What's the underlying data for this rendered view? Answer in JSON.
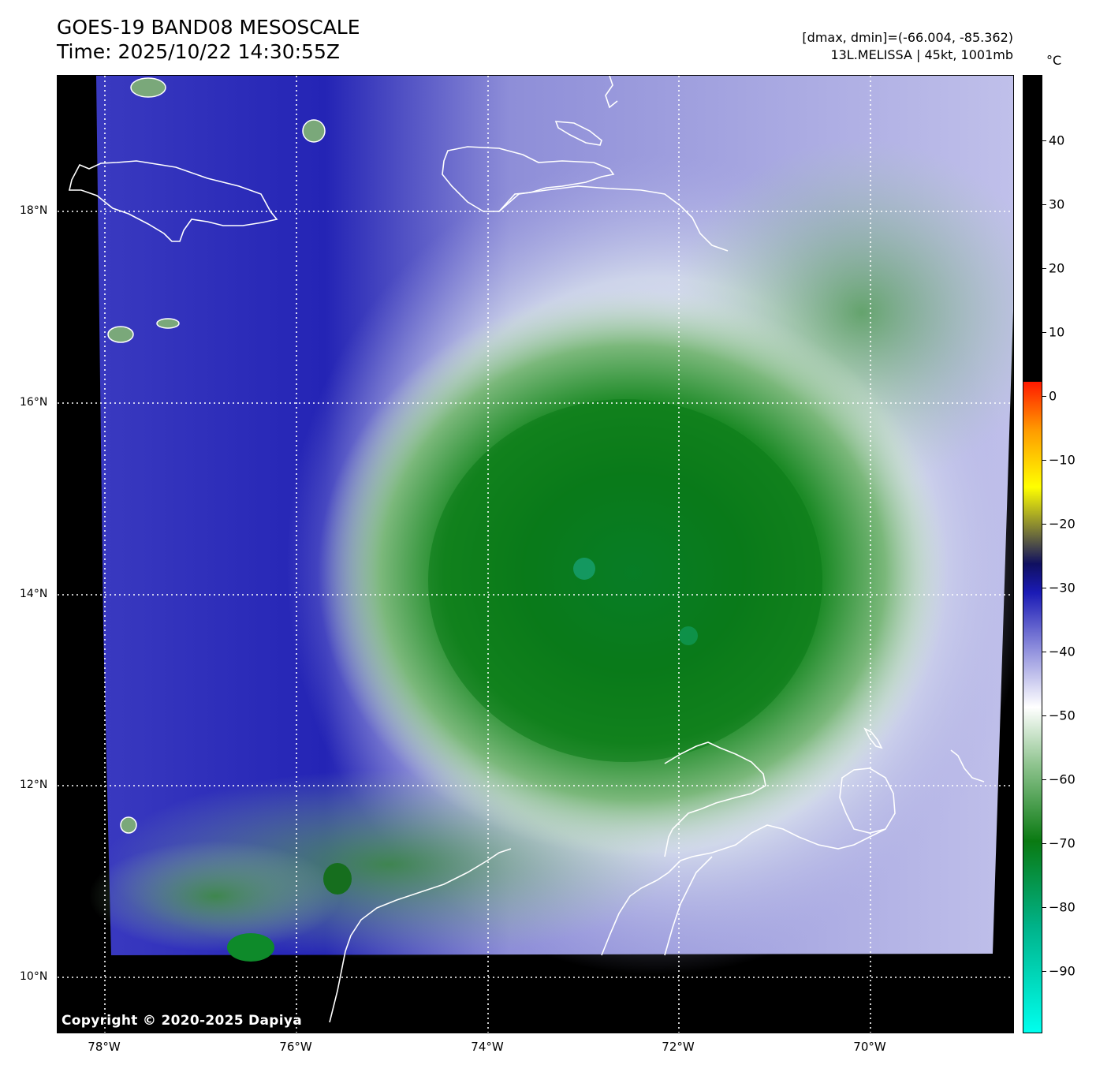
{
  "header": {
    "title": "GOES-19 BAND08 MESOSCALE",
    "time": "Time: 2025/10/22 14:30:55Z",
    "dminmax": "[dmax, dmin]=(-66.004, -85.362)",
    "storm": "13L.MELISSA | 45kt, 1001mb"
  },
  "map": {
    "lat_labels": [
      "18°N",
      "16°N",
      "14°N",
      "12°N",
      "10°N"
    ],
    "lon_labels": [
      "78°W",
      "76°W",
      "74°W",
      "72°W",
      "70°W"
    ],
    "copyright": "Copyright © 2020-2025 Dapiya"
  },
  "colorbar": {
    "unit": "°C",
    "tick_labels": [
      "40",
      "30",
      "20",
      "10",
      "0",
      "−10",
      "−20",
      "−30",
      "−40",
      "−50",
      "−60",
      "−70",
      "−80",
      "−90"
    ],
    "colors": {
      "cold_cyan": "#00ffee",
      "teal": "#00b38a",
      "dark_green": "#0a7a12",
      "light_green": "#8fc48f",
      "white": "#ffffff",
      "lavender": "#9090dd",
      "deep_blue": "#1a1ab5",
      "dark_navy": "#101060",
      "olive": "#8a8a30",
      "yellow": "#ffff00",
      "orange": "#ff9a00",
      "red": "#ff1a00",
      "black": "#000000"
    }
  }
}
